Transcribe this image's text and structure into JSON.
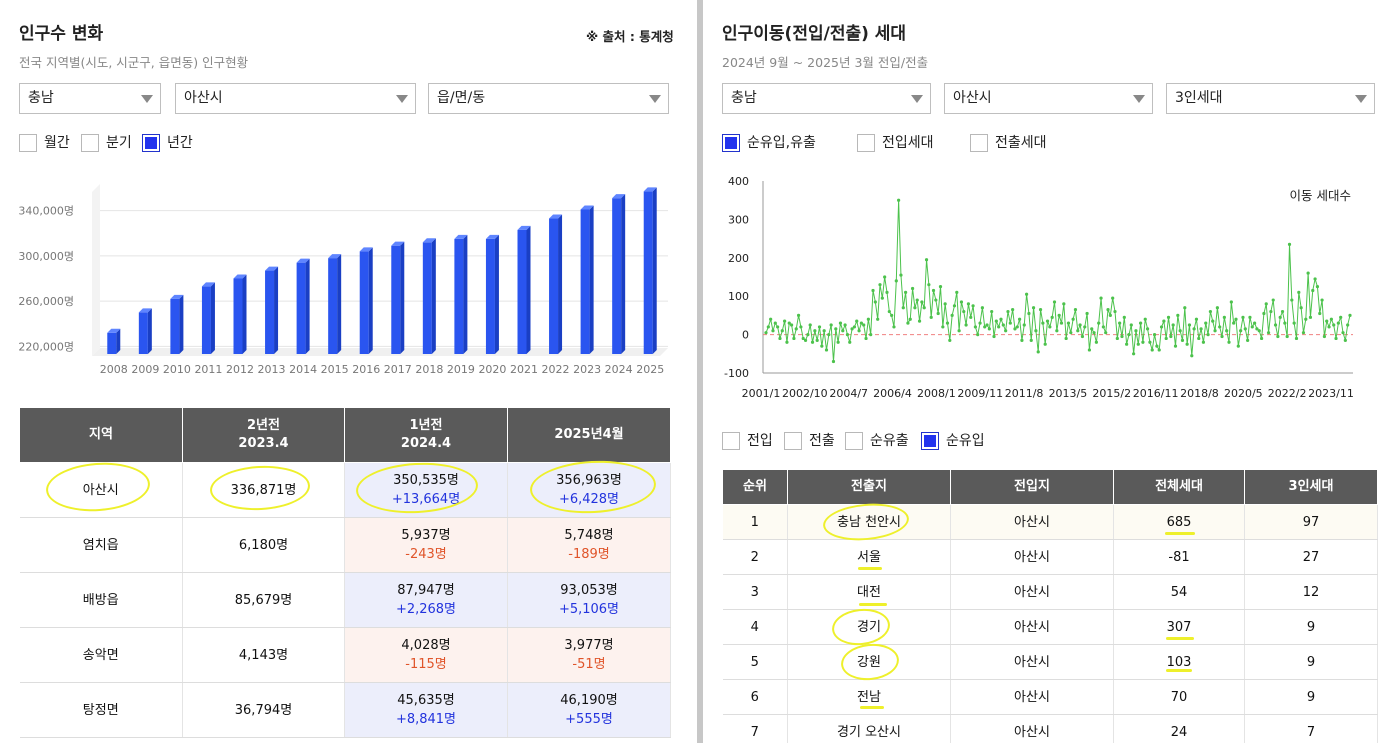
{
  "left": {
    "title": "인구수 변화",
    "source": "※ 출처 : 통계청",
    "subtitle": "전국 지역별(시도, 시군구, 읍면동) 인구현황",
    "filters": [
      "충남",
      "아산시",
      "읍/면/동"
    ],
    "periods": [
      {
        "label": "월간",
        "checked": false
      },
      {
        "label": "분기",
        "checked": false
      },
      {
        "label": "년간",
        "checked": true
      }
    ],
    "chart_data": {
      "type": "bar",
      "categories": [
        "2008",
        "2009",
        "2010",
        "2011",
        "2012",
        "2013",
        "2014",
        "2015",
        "2016",
        "2017",
        "2018",
        "2019",
        "2020",
        "2021",
        "2022",
        "2023",
        "2024",
        "2025"
      ],
      "values": [
        232000,
        250000,
        262000,
        273000,
        280000,
        287000,
        294000,
        298000,
        304000,
        309000,
        312000,
        315000,
        315000,
        323000,
        333000,
        341000,
        351000,
        357000
      ],
      "ylim": [
        215000,
        360000
      ],
      "yticks": [
        "220,000명",
        "260,000명",
        "300,000명",
        "340,000명"
      ],
      "ytick_values": [
        220000,
        260000,
        300000,
        340000
      ],
      "color": "#2a55f0"
    },
    "table": {
      "headers": [
        {
          "l1": "지역",
          "l2": ""
        },
        {
          "l1": "2년전",
          "l2": "2023.4"
        },
        {
          "l1": "1년전",
          "l2": "2024.4"
        },
        {
          "l1": "2025년4월",
          "l2": ""
        }
      ],
      "rows": [
        {
          "region": "아산시",
          "y2": "336,871명",
          "y1": "350,535명",
          "y1d": "+13,664명",
          "y1s": "pos",
          "cur": "356,963명",
          "curd": "+6,428명",
          "curs": "pos"
        },
        {
          "region": "염치읍",
          "y2": "6,180명",
          "y1": "5,937명",
          "y1d": "-243명",
          "y1s": "neg",
          "cur": "5,748명",
          "curd": "-189명",
          "curs": "neg"
        },
        {
          "region": "배방읍",
          "y2": "85,679명",
          "y1": "87,947명",
          "y1d": "+2,268명",
          "y1s": "pos",
          "cur": "93,053명",
          "curd": "+5,106명",
          "curs": "pos"
        },
        {
          "region": "송악면",
          "y2": "4,143명",
          "y1": "4,028명",
          "y1d": "-115명",
          "y1s": "neg",
          "cur": "3,977명",
          "curd": "-51명",
          "curs": "neg"
        },
        {
          "region": "탕정면",
          "y2": "36,794명",
          "y1": "45,635명",
          "y1d": "+8,841명",
          "y1s": "pos",
          "cur": "46,190명",
          "curd": "+555명",
          "curs": "pos"
        }
      ]
    }
  },
  "right": {
    "title": "인구이동(전입/전출) 세대",
    "subtitle": "2024년 9월 ~ 2025년 3월 전입/전출",
    "filters": [
      "충남",
      "아산시",
      "3인세대"
    ],
    "options": [
      {
        "label": "순유입,유출",
        "checked": true
      },
      {
        "label": "전입세대",
        "checked": false
      },
      {
        "label": "전출세대",
        "checked": false
      }
    ],
    "chart_data": {
      "type": "line",
      "legend": "이동 세대수",
      "ylim": [
        -100,
        400
      ],
      "yticks": [
        -100,
        0,
        100,
        200,
        300,
        400
      ],
      "xticks": [
        "2001/1",
        "2002/10",
        "2004/7",
        "2006/4",
        "2008/1",
        "2009/11",
        "2011/8",
        "2013/5",
        "2015/2",
        "2016/11",
        "2018/8",
        "2020/5",
        "2022/2",
        "2023/11"
      ],
      "color": "#4cc24c",
      "values": [
        5,
        20,
        40,
        10,
        30,
        20,
        -10,
        10,
        35,
        -20,
        30,
        25,
        -10,
        15,
        50,
        20,
        -10,
        -15,
        0,
        25,
        -20,
        10,
        -15,
        20,
        -30,
        10,
        -40,
        0,
        25,
        -70,
        15,
        -20,
        30,
        10,
        25,
        0,
        -20,
        15,
        20,
        35,
        10,
        30,
        25,
        -10,
        40,
        0,
        115,
        85,
        40,
        130,
        95,
        150,
        110,
        60,
        50,
        20,
        140,
        350,
        155,
        70,
        110,
        30,
        40,
        120,
        70,
        90,
        35,
        85,
        70,
        195,
        130,
        45,
        115,
        90,
        55,
        125,
        20,
        80,
        30,
        -15,
        50,
        75,
        110,
        10,
        85,
        60,
        25,
        80,
        45,
        75,
        20,
        0,
        30,
        70,
        20,
        25,
        15,
        60,
        -5,
        35,
        20,
        40,
        25,
        10,
        60,
        30,
        65,
        15,
        20,
        40,
        -15,
        25,
        105,
        55,
        -15,
        70,
        10,
        -45,
        65,
        30,
        -25,
        35,
        20,
        45,
        85,
        10,
        50,
        30,
        80,
        -10,
        30,
        5,
        40,
        65,
        10,
        25,
        -5,
        20,
        55,
        -40,
        15,
        5,
        -20,
        30,
        95,
        20,
        5,
        65,
        50,
        95,
        60,
        -10,
        30,
        -5,
        45,
        -25,
        0,
        25,
        -50,
        10,
        -25,
        30,
        -20,
        40,
        15,
        -20,
        -40,
        0,
        -30,
        -40,
        20,
        35,
        -10,
        45,
        -5,
        25,
        -30,
        50,
        10,
        -15,
        70,
        -25,
        25,
        -55,
        15,
        40,
        -10,
        15,
        -20,
        30,
        0,
        60,
        35,
        10,
        70,
        20,
        -5,
        45,
        10,
        -20,
        85,
        30,
        40,
        -30,
        10,
        45,
        15,
        -15,
        45,
        20,
        30,
        15,
        10,
        -10,
        55,
        80,
        5,
        60,
        90,
        25,
        -5,
        45,
        60,
        30,
        -5,
        235,
        90,
        30,
        -10,
        110,
        70,
        5,
        40,
        160,
        45,
        115,
        145,
        125,
        55,
        90,
        -5,
        35,
        20,
        40,
        25,
        -10,
        30,
        45,
        5,
        -15,
        25,
        50
      ]
    },
    "checks": [
      {
        "label": "전입",
        "checked": false
      },
      {
        "label": "전출",
        "checked": false
      },
      {
        "label": "순유출",
        "checked": false
      },
      {
        "label": "순유입",
        "checked": true
      }
    ],
    "table": {
      "headers": [
        "순위",
        "전출지",
        "전입지",
        "전체세대",
        "3인세대"
      ],
      "rows": [
        {
          "rank": "1",
          "from": "충남 천안시",
          "to": "아산시",
          "total": "685",
          "three": "97"
        },
        {
          "rank": "2",
          "from": "서울",
          "to": "아산시",
          "total": "-81",
          "three": "27"
        },
        {
          "rank": "3",
          "from": "대전",
          "to": "아산시",
          "total": "54",
          "three": "12"
        },
        {
          "rank": "4",
          "from": "경기",
          "to": "아산시",
          "total": "307",
          "three": "9"
        },
        {
          "rank": "5",
          "from": "강원",
          "to": "아산시",
          "total": "103",
          "three": "9"
        },
        {
          "rank": "6",
          "from": "전남",
          "to": "아산시",
          "total": "70",
          "three": "9"
        },
        {
          "rank": "7",
          "from": "경기 오산시",
          "to": "아산시",
          "total": "24",
          "three": "7"
        }
      ]
    }
  }
}
